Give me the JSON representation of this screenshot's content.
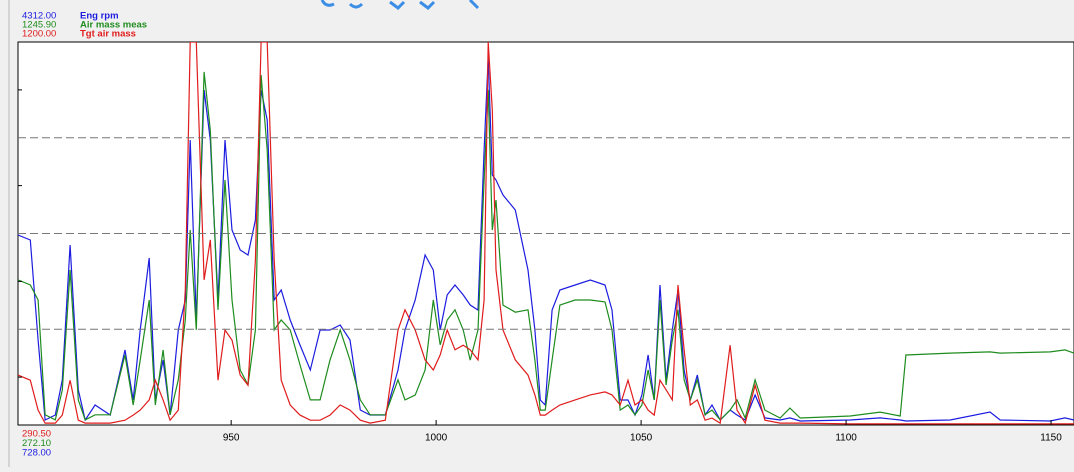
{
  "chart_data": {
    "type": "line",
    "grid": true,
    "x": [
      898.0,
      901.0,
      902.9,
      904.6,
      907.1,
      908.8,
      910.7,
      912.7,
      914.4,
      916.8,
      920.5,
      924.1,
      926.1,
      927.8,
      930.0,
      931.5,
      933.4,
      935.1,
      937.1,
      938.8,
      940.0,
      941.5,
      943.4,
      944.9,
      946.8,
      948.5,
      950.2,
      952.2,
      954.1,
      955.9,
      957.3,
      958.8,
      960.5,
      962.2,
      964.4,
      966.8,
      969.3,
      971.7,
      974.1,
      976.6,
      979.0,
      981.5,
      983.9,
      987.6,
      990.7,
      992.4,
      994.9,
      997.3,
      999.3,
      1001.0,
      1002.7,
      1004.6,
      1006.6,
      1008.3,
      1010.2,
      1011.7,
      1012.7,
      1013.7,
      1014.6,
      1016.3,
      1019.3,
      1022.4,
      1024.1,
      1025.4,
      1026.6,
      1028.3,
      1030.2,
      1033.9,
      1037.6,
      1041.2,
      1042.9,
      1044.9,
      1046.8,
      1048.5,
      1050.2,
      1051.7,
      1053.2,
      1054.6,
      1056.1,
      1057.6,
      1059.0,
      1060.5,
      1062.0,
      1063.7,
      1065.6,
      1067.3,
      1069.3,
      1071.7,
      1073.4,
      1075.4,
      1077.8,
      1080.2,
      1083.9,
      1086.3,
      1088.8,
      1101.0,
      1108.3,
      1113.2,
      1114.6,
      1125.4,
      1135.1,
      1137.6,
      1149.8,
      1153.4,
      1155.6
    ],
    "xlim": [
      898.0,
      1155.6
    ],
    "xticks": [
      950,
      1000,
      1050,
      1100,
      1150
    ],
    "series": [
      {
        "name": "Eng rpm",
        "color": "#1c1ce0",
        "ylim": [
          728,
          4312
        ],
        "yticks": [
          {
            "value": 728,
            "label": "728.00"
          },
          {
            "value": 4312,
            "label": "4312.00"
          }
        ],
        "values": [
          2506,
          2459,
          1523,
          775,
          822,
          1149,
          2412,
          1056,
          775,
          915,
          822,
          1430,
          962,
          1617,
          2291,
          962,
          1336,
          822,
          1617,
          1898,
          3395,
          1711,
          3863,
          3395,
          1898,
          3395,
          2553,
          2366,
          2319,
          2646,
          3863,
          3582,
          1898,
          1991,
          1711,
          1477,
          1243,
          1617,
          1617,
          1664,
          1523,
          868,
          822,
          822,
          1243,
          1617,
          1898,
          2319,
          2178,
          1617,
          1945,
          2038,
          1945,
          1851,
          1804,
          3301,
          4162,
          3068,
          3021,
          2880,
          2740,
          2178,
          1617,
          962,
          915,
          1804,
          1991,
          2038,
          2085,
          2038,
          1804,
          962,
          962,
          822,
          1009,
          1383,
          962,
          2038,
          1149,
          1617,
          1991,
          1243,
          962,
          1196,
          822,
          915,
          775,
          868,
          822,
          775,
          1009,
          794,
          775,
          794,
          765,
          775,
          794,
          775,
          765,
          775,
          850,
          775,
          765,
          794,
          775
        ]
      },
      {
        "name": "Air mass meas",
        "color": "#1e8c1e",
        "ylim": [
          272.1,
          1245.9
        ],
        "yticks": [
          {
            "value": 272.1,
            "label": "272.10"
          },
          {
            "value": 1245.9,
            "label": "1245.90"
          }
        ],
        "values": [
          641,
          628,
          590,
          298,
          285,
          361,
          666,
          336,
          285,
          298,
          298,
          450,
          323,
          437,
          590,
          323,
          463,
          298,
          387,
          539,
          768,
          514,
          1170,
          1022,
          565,
          895,
          590,
          412,
          374,
          514,
          1162,
          971,
          514,
          539,
          514,
          425,
          336,
          336,
          437,
          514,
          437,
          336,
          298,
          298,
          387,
          336,
          348,
          412,
          590,
          476,
          539,
          565,
          514,
          437,
          514,
          895,
          1124,
          768,
          844,
          577,
          559,
          565,
          437,
          310,
          310,
          437,
          577,
          590,
          590,
          585,
          514,
          310,
          323,
          298,
          323,
          412,
          336,
          590,
          374,
          488,
          565,
          387,
          336,
          387,
          298,
          310,
          285,
          310,
          336,
          290,
          387,
          310,
          290,
          315,
          290,
          295,
          305,
          295,
          450,
          455,
          458,
          455,
          458,
          463,
          455
        ]
      },
      {
        "name": "Tgt air mass",
        "color": "#e01c1c",
        "ylim": [
          290.5,
          1200
        ],
        "yticks": [
          {
            "value": 290.5,
            "label": "290.50"
          },
          {
            "value": 1200,
            "label": "1200.00"
          }
        ],
        "values": [
          409,
          397,
          326,
          295,
          295,
          314,
          397,
          302,
          295,
          295,
          295,
          302,
          314,
          326,
          350,
          397,
          350,
          302,
          326,
          611,
          1200,
          1200,
          635,
          730,
          397,
          516,
          492,
          409,
          385,
          682,
          1200,
          1200,
          682,
          397,
          338,
          314,
          302,
          302,
          314,
          338,
          326,
          302,
          295,
          302,
          516,
          564,
          516,
          445,
          421,
          457,
          516,
          469,
          480,
          469,
          445,
          587,
          1200,
          1039,
          659,
          516,
          445,
          409,
          362,
          314,
          314,
          326,
          338,
          350,
          362,
          369,
          362,
          338,
          397,
          338,
          350,
          326,
          314,
          397,
          374,
          350,
          623,
          469,
          338,
          350,
          302,
          307,
          295,
          480,
          326,
          295,
          385,
          302,
          295,
          295,
          295,
          293,
          293,
          293,
          293,
          293,
          293,
          293,
          293,
          293,
          293
        ]
      }
    ]
  }
}
